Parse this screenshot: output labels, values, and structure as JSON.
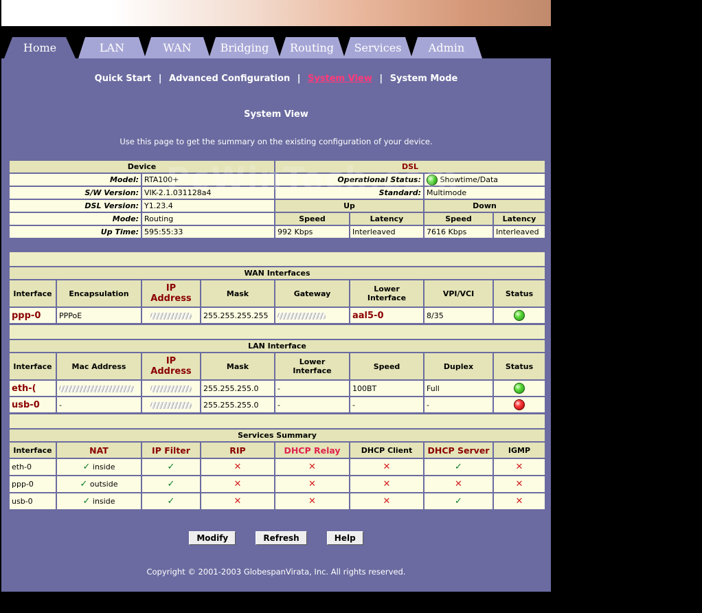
{
  "tabs": [
    {
      "label": "Home",
      "active": true
    },
    {
      "label": "LAN"
    },
    {
      "label": "WAN"
    },
    {
      "label": "Bridging"
    },
    {
      "label": "Routing"
    },
    {
      "label": "Services"
    },
    {
      "label": "Admin"
    }
  ],
  "subnav": {
    "quick_start": "Quick Start",
    "advanced": "Advanced Configuration",
    "system_view": "System View",
    "system_mode": "System Mode",
    "separator": "|"
  },
  "page": {
    "title": "System View",
    "description": "Use this page to get the summary on the existing configuration of your device.",
    "watermark": "PcWinTech.com"
  },
  "device": {
    "header": "Device",
    "model_label": "Model:",
    "model": "RTA100+",
    "sw_label": "S/W Version:",
    "sw": "VIK-2.1.031128a4",
    "dsl_label": "DSL Version:",
    "dsl": "Y1.23.4",
    "mode_label": "Mode:",
    "mode": "Routing",
    "uptime_label": "Up Time:",
    "uptime": "595:55:33"
  },
  "dsl": {
    "header": "DSL",
    "op_label": "Operational Status:",
    "op_status": "Showtime/Data",
    "std_label": "Standard:",
    "standard": "Multimode",
    "up": "Up",
    "down": "Down",
    "speed": "Speed",
    "latency": "Latency",
    "up_speed": "992 Kbps",
    "up_latency": "Interleaved",
    "down_speed": "7616 Kbps",
    "down_latency": "Interleaved"
  },
  "wan": {
    "title": "WAN Interfaces",
    "headers": {
      "interface": "Interface",
      "encap": "Encapsulation",
      "ip_line1": "IP",
      "ip_line2": "Address",
      "mask": "Mask",
      "gateway": "Gateway",
      "lower_line1": "Lower",
      "lower_line2": "Interface",
      "vpi": "VPI/VCI",
      "status": "Status"
    },
    "row": {
      "interface": "ppp-0",
      "encap": "PPPoE",
      "mask": "255.255.255.255",
      "lower": "aal5-0",
      "vpi": "8/35"
    }
  },
  "lan": {
    "title": "LAN Interface",
    "headers": {
      "interface": "Interface",
      "mac": "Mac Address",
      "ip_line1": "IP",
      "ip_line2": "Address",
      "mask": "Mask",
      "lower_line1": "Lower",
      "lower_line2": "Interface",
      "speed": "Speed",
      "duplex": "Duplex",
      "status": "Status"
    },
    "rows": [
      {
        "interface": "eth-(",
        "mask": "255.255.255.0",
        "lower": "-",
        "speed": "100BT",
        "duplex": "Full"
      },
      {
        "interface": "usb-0",
        "mac": "-",
        "mask": "255.255.255.0",
        "lower": "-",
        "speed": "-",
        "duplex": "-"
      }
    ]
  },
  "services": {
    "title": "Services Summary",
    "headers": {
      "interface": "Interface",
      "nat": "NAT",
      "ipfilter": "IP Filter",
      "rip": "RIP",
      "dhcp_relay": "DHCP Relay",
      "dhcp_client": "DHCP Client",
      "dhcp_server": "DHCP Server",
      "igmp": "IGMP"
    },
    "rows": [
      {
        "interface": "eth-0",
        "nat": "inside"
      },
      {
        "interface": "ppp-0",
        "nat": "outside"
      },
      {
        "interface": "usb-0",
        "nat": "inside"
      }
    ]
  },
  "buttons": {
    "modify": "Modify",
    "refresh": "Refresh",
    "help": "Help"
  },
  "copyright": "Copyright © 2001-2003 GlobespanVirata, Inc. All rights reserved.",
  "colors": {
    "panel": "#6b6ba1",
    "tab_inactive": "#a6a6d6",
    "header_cell": "#e4e4b8",
    "data_cell": "#fdfde3",
    "accent_red": "#8b0000",
    "accent_pink": "#e0224f"
  }
}
